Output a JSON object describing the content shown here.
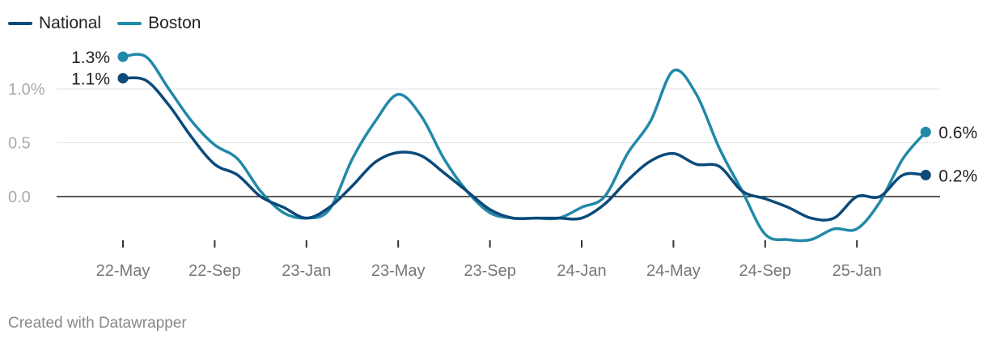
{
  "chart_data": {
    "type": "line",
    "y_ticks": [
      {
        "value": 1.0,
        "label": "1.0%"
      },
      {
        "value": 0.5,
        "label": "0.5"
      },
      {
        "value": 0.0,
        "label": "0.0"
      }
    ],
    "ylim": [
      -0.45,
      1.5
    ],
    "x_ticks": [
      "22-May",
      "22-Sep",
      "23-Jan",
      "23-May",
      "23-Sep",
      "24-Jan",
      "24-May",
      "24-Sep",
      "25-Jan"
    ],
    "grid": true,
    "legend_position": "top-left",
    "series": [
      {
        "name": "National",
        "color": "#0b4a7a",
        "points": [
          [
            "22-May",
            1.1
          ],
          [
            "22-Jun",
            1.08
          ],
          [
            "22-Jul",
            0.85
          ],
          [
            "22-Aug",
            0.55
          ],
          [
            "22-Sep",
            0.3
          ],
          [
            "22-Oct",
            0.2
          ],
          [
            "22-Nov",
            0.0
          ],
          [
            "22-Dec",
            -0.1
          ],
          [
            "23-Jan",
            -0.2
          ],
          [
            "23-Feb",
            -0.1
          ],
          [
            "23-Mar",
            0.1
          ],
          [
            "23-Apr",
            0.32
          ],
          [
            "23-May",
            0.41
          ],
          [
            "23-Jun",
            0.38
          ],
          [
            "23-Jul",
            0.22
          ],
          [
            "23-Aug",
            0.05
          ],
          [
            "23-Sep",
            -0.12
          ],
          [
            "23-Oct",
            -0.2
          ],
          [
            "23-Nov",
            -0.2
          ],
          [
            "23-Dec",
            -0.2
          ],
          [
            "24-Jan",
            -0.2
          ],
          [
            "24-Feb",
            -0.07
          ],
          [
            "24-Mar",
            0.15
          ],
          [
            "24-Apr",
            0.33
          ],
          [
            "24-May",
            0.4
          ],
          [
            "24-Jun",
            0.3
          ],
          [
            "24-Jul",
            0.28
          ],
          [
            "24-Aug",
            0.05
          ],
          [
            "24-Sep",
            -0.02
          ],
          [
            "24-Oct",
            -0.1
          ],
          [
            "24-Nov",
            -0.2
          ],
          [
            "24-Dec",
            -0.2
          ],
          [
            "25-Jan",
            0.0
          ],
          [
            "25-Feb",
            0.0
          ],
          [
            "25-Mar",
            0.2
          ],
          [
            "25-Apr",
            0.2
          ]
        ],
        "end_labels": {
          "start": "1.1%",
          "end": "0.2%"
        }
      },
      {
        "name": "Boston",
        "color": "#2289a8",
        "points": [
          [
            "22-May",
            1.3
          ],
          [
            "22-Jun",
            1.3
          ],
          [
            "22-Jul",
            1.0
          ],
          [
            "22-Aug",
            0.7
          ],
          [
            "22-Sep",
            0.48
          ],
          [
            "22-Oct",
            0.35
          ],
          [
            "22-Nov",
            0.05
          ],
          [
            "22-Dec",
            -0.15
          ],
          [
            "23-Jan",
            -0.2
          ],
          [
            "23-Feb",
            -0.12
          ],
          [
            "23-Mar",
            0.35
          ],
          [
            "23-Apr",
            0.7
          ],
          [
            "23-May",
            0.95
          ],
          [
            "23-Jun",
            0.75
          ],
          [
            "23-Jul",
            0.35
          ],
          [
            "23-Aug",
            0.05
          ],
          [
            "23-Sep",
            -0.15
          ],
          [
            "23-Oct",
            -0.2
          ],
          [
            "23-Nov",
            -0.2
          ],
          [
            "23-Dec",
            -0.2
          ],
          [
            "24-Jan",
            -0.1
          ],
          [
            "24-Feb",
            0.0
          ],
          [
            "24-Mar",
            0.4
          ],
          [
            "24-Apr",
            0.7
          ],
          [
            "24-May",
            1.17
          ],
          [
            "24-Jun",
            0.95
          ],
          [
            "24-Jul",
            0.45
          ],
          [
            "24-Aug",
            0.05
          ],
          [
            "24-Sep",
            -0.35
          ],
          [
            "24-Oct",
            -0.4
          ],
          [
            "24-Nov",
            -0.4
          ],
          [
            "24-Dec",
            -0.3
          ],
          [
            "25-Jan",
            -0.3
          ],
          [
            "25-Feb",
            -0.05
          ],
          [
            "25-Mar",
            0.35
          ],
          [
            "25-Apr",
            0.6
          ]
        ],
        "end_labels": {
          "start": "1.3%",
          "end": "0.6%"
        }
      }
    ]
  },
  "footer": {
    "credit": "Created with Datawrapper"
  }
}
